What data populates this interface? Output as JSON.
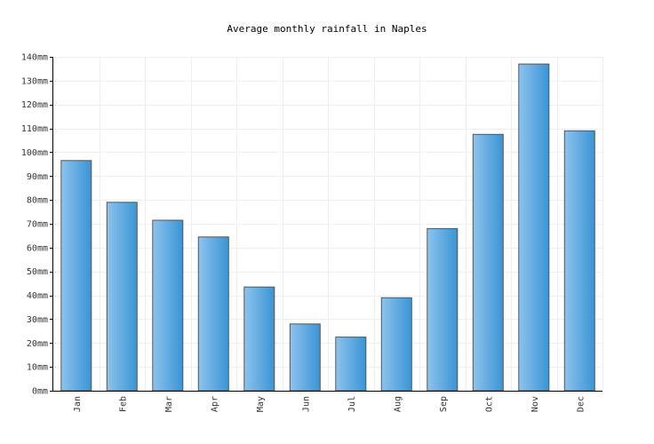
{
  "chart_data": {
    "type": "bar",
    "title": "Average monthly rainfall in Naples",
    "xlabel": "",
    "ylabel": "",
    "unit": "mm",
    "categories": [
      "Jan",
      "Feb",
      "Mar",
      "Apr",
      "May",
      "Jun",
      "Jul",
      "Aug",
      "Sep",
      "Oct",
      "Nov",
      "Dec"
    ],
    "values": [
      96.5,
      79,
      71.5,
      64.5,
      43.5,
      28,
      22.5,
      39,
      68,
      107.5,
      137,
      109
    ],
    "ylim": [
      0,
      140
    ],
    "y_ticks": [
      0,
      10,
      20,
      30,
      40,
      50,
      60,
      70,
      80,
      90,
      100,
      110,
      120,
      130,
      140
    ],
    "y_tick_labels": [
      "0mm",
      "10mm",
      "20mm",
      "30mm",
      "40mm",
      "50mm",
      "60mm",
      "70mm",
      "80mm",
      "90mm",
      "100mm",
      "110mm",
      "120mm",
      "130mm",
      "140mm"
    ],
    "grid": true,
    "colors": {
      "bar_light": "#8dc3ee",
      "bar_dark": "#3a94d4",
      "bar_stroke": "#555555",
      "grid": "#eeeeee",
      "axis": "#000000"
    }
  }
}
